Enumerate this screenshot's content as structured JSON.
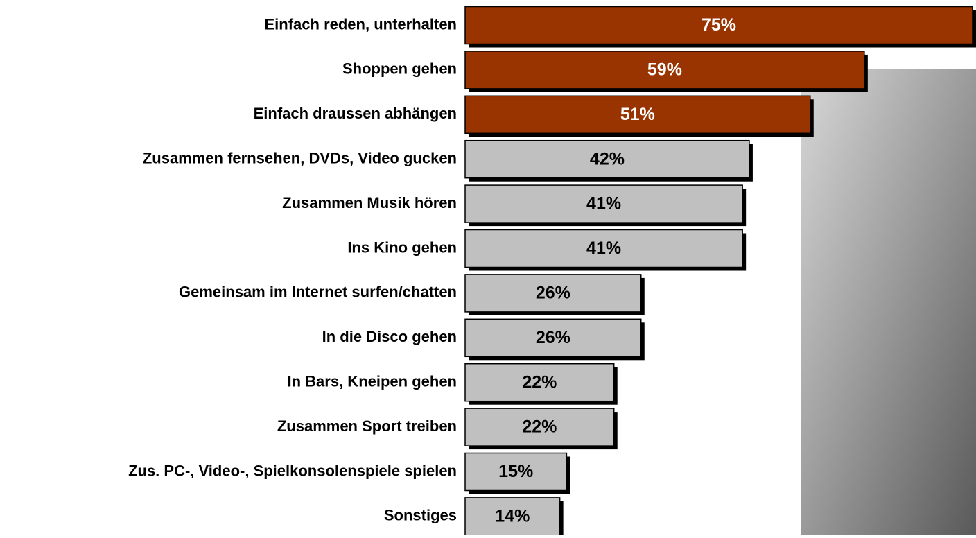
{
  "chart_data": {
    "type": "bar",
    "orientation": "horizontal",
    "categories": [
      "Einfach reden, unterhalten",
      "Shoppen gehen",
      "Einfach draussen abhängen",
      "Zusammen fernsehen, DVDs, Video gucken",
      "Zusammen Musik hören",
      "Ins Kino gehen",
      "Gemeinsam im Internet surfen/chatten",
      "In die Disco gehen",
      "In Bars, Kneipen gehen",
      "Zusammen Sport treiben",
      "Zus. PC-, Video-, Spielkonsolenspiele spielen",
      "Sonstiges"
    ],
    "values": [
      75,
      59,
      51,
      42,
      41,
      41,
      26,
      26,
      22,
      22,
      15,
      14
    ],
    "value_labels": [
      "75%",
      "59%",
      "51%",
      "42%",
      "41%",
      "41%",
      "26%",
      "26%",
      "22%",
      "22%",
      "15%",
      "14%"
    ],
    "colors": [
      "#993300",
      "#993300",
      "#993300",
      "#c0c0c0",
      "#c0c0c0",
      "#c0c0c0",
      "#c0c0c0",
      "#c0c0c0",
      "#c0c0c0",
      "#c0c0c0",
      "#c0c0c0",
      "#c0c0c0"
    ],
    "value_label_colors": [
      "#ffffff",
      "#ffffff",
      "#ffffff",
      "#000000",
      "#000000",
      "#000000",
      "#000000",
      "#000000",
      "#000000",
      "#000000",
      "#000000",
      "#000000"
    ]
  }
}
